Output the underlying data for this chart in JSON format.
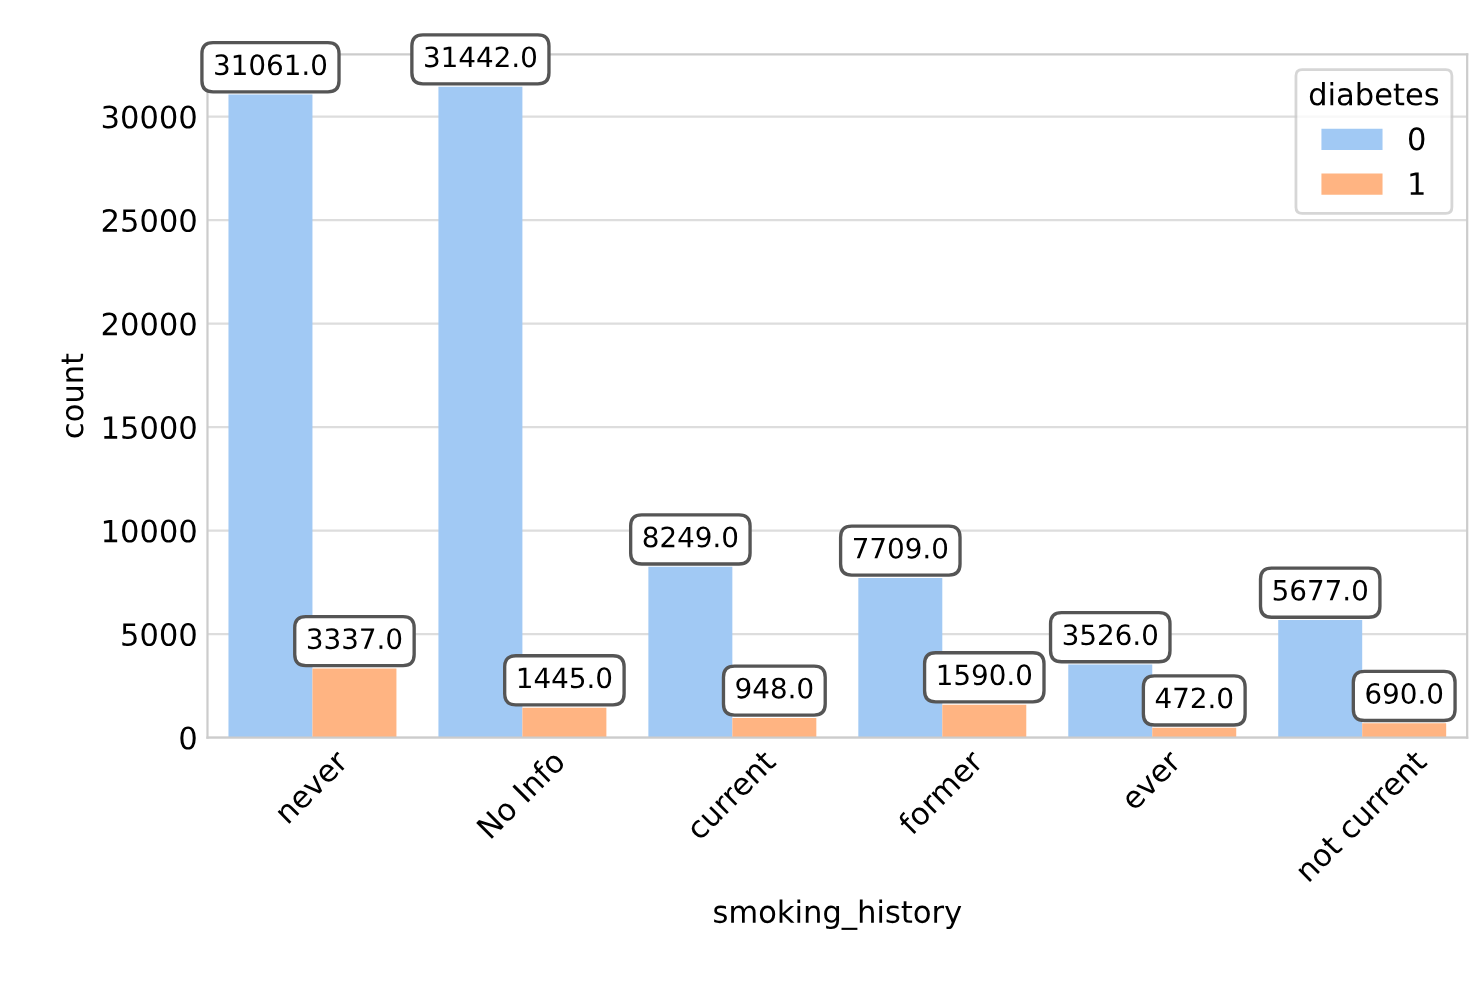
{
  "chart_data": {
    "type": "bar",
    "xlabel": "smoking_history",
    "ylabel": "count",
    "legend_title": "diabetes",
    "legend": "top right",
    "grid": "y",
    "categories": [
      "never",
      "No Info",
      "current",
      "former",
      "ever",
      "not current"
    ],
    "series": [
      {
        "name": "0",
        "color": "#a1c9f4",
        "values": [
          31061,
          31442,
          8249,
          7709,
          3526,
          5677
        ],
        "value_labels": [
          "31061.0",
          "31442.0",
          "8249.0",
          "7709.0",
          "3526.0",
          "5677.0"
        ]
      },
      {
        "name": "1",
        "color": "#ffb482",
        "values": [
          3337,
          1445,
          948,
          1590,
          472,
          690
        ],
        "value_labels": [
          "3337.0",
          "1445.0",
          "948.0",
          "1590.0",
          "472.0",
          "690.0"
        ]
      }
    ],
    "ylim": [
      0,
      33000
    ],
    "yticks": [
      0,
      5000,
      10000,
      15000,
      20000,
      25000,
      30000
    ]
  }
}
